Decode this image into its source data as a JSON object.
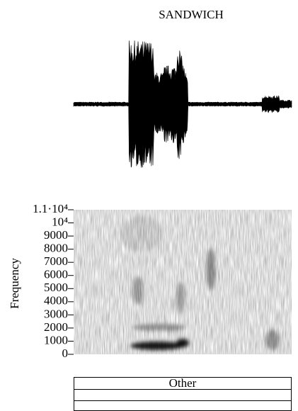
{
  "chart_data": {
    "type": "spectrogram",
    "title": "SANDWICH",
    "y_label": "Frequency",
    "ylim": [
      0,
      11000
    ],
    "yticks": [
      0,
      1000,
      2000,
      3000,
      4000,
      5000,
      6000,
      7000,
      8000,
      9000,
      {
        "value": 10000,
        "label": "10⁴"
      },
      {
        "value": 11000,
        "label": "1.1·10⁴"
      }
    ],
    "color": "#000000"
  },
  "annotation_tiers": {
    "rows": [
      "Other"
    ]
  }
}
